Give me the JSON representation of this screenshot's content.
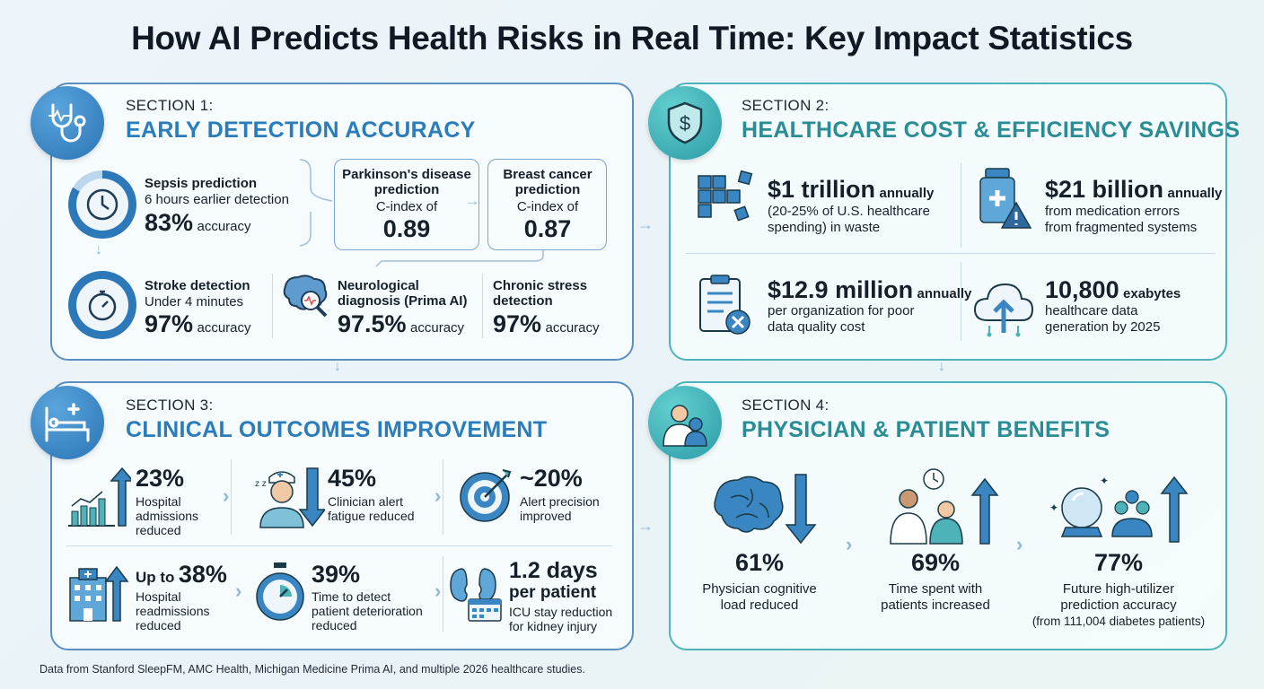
{
  "title": "How AI Predicts Health Risks in Real Time: Key Impact Statistics",
  "section1": {
    "kicker": "SECTION 1:",
    "title": "EARLY DETECTION ACCURACY",
    "sepsis": {
      "title": "Sepsis prediction",
      "sub": "6 hours earlier detection",
      "value": "83%",
      "unit": "accuracy"
    },
    "parkinsons": {
      "title": "Parkinson's disease prediction",
      "sub": "C-index of",
      "value": "0.89"
    },
    "breast": {
      "title": "Breast cancer prediction",
      "sub": "C-index of",
      "value": "0.87"
    },
    "stroke": {
      "title": "Stroke detection",
      "sub": "Under 4 minutes",
      "value": "97%",
      "unit": "accuracy"
    },
    "neuro": {
      "title": "Neurological diagnosis (Prima AI)",
      "value": "97.5%",
      "unit": "accuracy"
    },
    "stress": {
      "title": "Chronic stress detection",
      "value": "97%",
      "unit": "accuracy"
    }
  },
  "section2": {
    "kicker": "SECTION 2:",
    "title": "HEALTHCARE COST & EFFICIENCY SAVINGS",
    "waste": {
      "value": "$1 trillion",
      "unit": "annually",
      "desc1": "(20-25% of U.S. healthcare",
      "desc2": "spending) in waste"
    },
    "medication": {
      "value": "$21 billion",
      "unit": "annually",
      "desc1": "from medication errors",
      "desc2": "from fragmented systems"
    },
    "quality": {
      "value": "$12.9 million",
      "unit": "annually",
      "desc1": "per organization for poor",
      "desc2": "data quality cost"
    },
    "data": {
      "value": "10,800",
      "unit": "exabytes",
      "desc1": "healthcare data",
      "desc2": "generation by 2025"
    }
  },
  "section3": {
    "kicker": "SECTION 3:",
    "title": "CLINICAL OUTCOMES IMPROVEMENT",
    "admissions": {
      "value": "23%",
      "l1": "Hospital",
      "l2": "admissions",
      "l3": "reduced"
    },
    "fatigue": {
      "value": "45%",
      "l1": "Clinician alert",
      "l2": "fatigue reduced"
    },
    "precision": {
      "value": "~20%",
      "l1": "Alert precision",
      "l2": "improved"
    },
    "readmissions": {
      "prefix": "Up to",
      "value": "38%",
      "l1": "Hospital",
      "l2": "readmissions",
      "l3": "reduced"
    },
    "deterioration": {
      "value": "39%",
      "l1": "Time to detect",
      "l2": "patient deterioration",
      "l3": "reduced"
    },
    "icu": {
      "value": "1.2 days",
      "value2": "per patient",
      "l1": "ICU stay reduction",
      "l2": "for kidney injury"
    }
  },
  "section4": {
    "kicker": "SECTION 4:",
    "title": "PHYSICIAN & PATIENT BENEFITS",
    "cognitive": {
      "value": "61%",
      "l1": "Physician cognitive",
      "l2": "load reduced"
    },
    "time": {
      "value": "69%",
      "l1": "Time spent with",
      "l2": "patients increased"
    },
    "future": {
      "value": "77%",
      "l1": "Future high-utilizer",
      "l2": "prediction accuracy",
      "l3": "(from 111,004 diabetes patients)"
    }
  },
  "footnote": "Data from Stanford SleepFM, AMC Health, Michigan Medicine Prima AI, and multiple 2026 healthcare studies.",
  "colors": {
    "blue_accent": "#2a7cbb",
    "teal_accent": "#2a8c94",
    "blue_border": "#5b8fc0",
    "teal_border": "#4eb3b8"
  },
  "icons": [
    "stethoscope-icon",
    "shield-dollar-icon",
    "hospital-bed-icon",
    "doctor-patient-icon",
    "clock-icon",
    "stopwatch-icon",
    "brain-search-icon",
    "puzzle-icon",
    "medicine-bottle-icon",
    "clipboard-x-icon",
    "cloud-upload-icon",
    "bar-chart-up-icon",
    "nurse-icon",
    "target-icon",
    "hospital-building-icon",
    "timer-icon",
    "kidney-calendar-icon",
    "brain-down-icon",
    "doctor-clock-icon",
    "crystal-ball-icon"
  ]
}
